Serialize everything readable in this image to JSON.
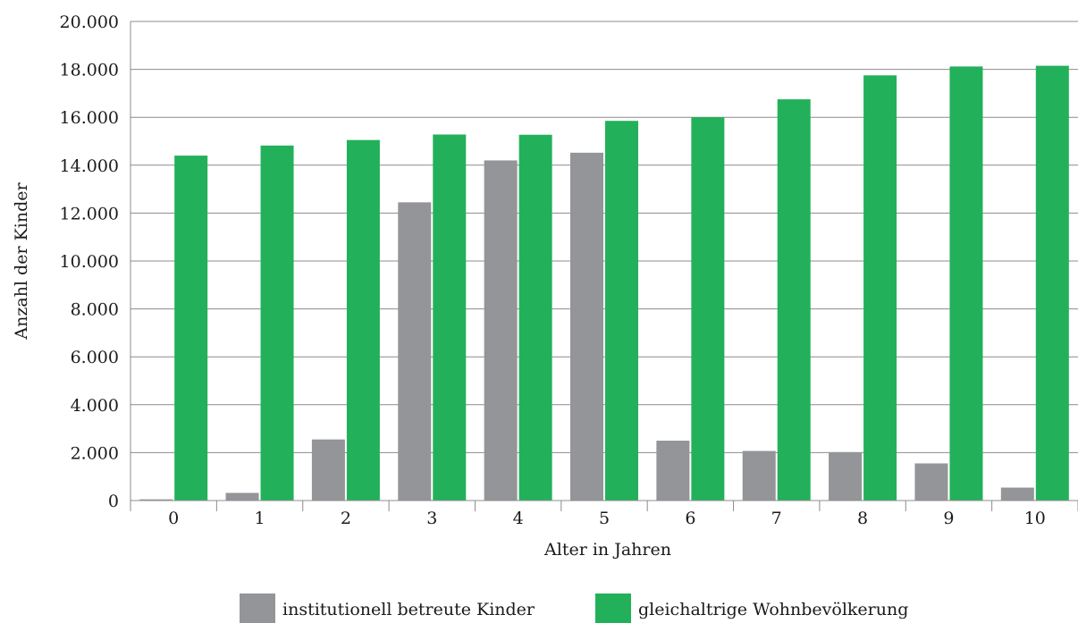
{
  "chart_data": {
    "type": "bar",
    "title": "",
    "xlabel": "Alter in Jahren",
    "ylabel": "Anzahl der Kinder",
    "categories": [
      "0",
      "1",
      "2",
      "3",
      "4",
      "5",
      "6",
      "7",
      "8",
      "9",
      "10"
    ],
    "ylim": [
      0,
      20000
    ],
    "yticks": [
      0,
      2000,
      4000,
      6000,
      8000,
      10000,
      12000,
      14000,
      16000,
      18000,
      20000
    ],
    "ytick_labels": [
      "0",
      "2.000",
      "4.000",
      "6.000",
      "8.000",
      "10.000",
      "12.000",
      "14.000",
      "16.000",
      "18.000",
      "20.000"
    ],
    "grid": true,
    "legend_position": "bottom",
    "series": [
      {
        "name": "institutionell betreute Kinder",
        "color": "#939598",
        "values": [
          50,
          320,
          2550,
          12450,
          14200,
          14520,
          2500,
          2070,
          2020,
          1550,
          540
        ]
      },
      {
        "name": "gleichaltrige Wohnbevölkerung",
        "color": "#22b15a",
        "values": [
          14400,
          14820,
          15050,
          15280,
          15270,
          15850,
          16000,
          16750,
          17750,
          18120,
          18150
        ]
      }
    ]
  }
}
